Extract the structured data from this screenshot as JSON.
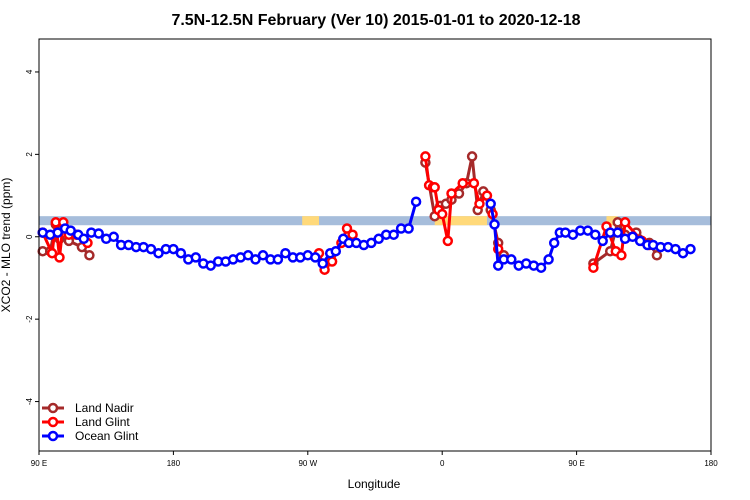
{
  "chart_data": {
    "type": "line",
    "title": "7.5N-12.5N February (Ver 10)   2015-01-01 to 2020-12-18",
    "xlabel": "Longitude",
    "ylabel": "XCO2 - MLO trend (ppm)",
    "xlim": [
      90,
      450
    ],
    "ylim": [
      -5.2,
      4.8
    ],
    "x_ticks": [
      {
        "value": 90,
        "label": "90 E"
      },
      {
        "value": 162,
        "label": "180"
      },
      {
        "value": 234,
        "label": "90 W"
      },
      {
        "value": 306,
        "label": "0"
      },
      {
        "value": 378,
        "label": "90 E"
      },
      {
        "value": 450,
        "label": "180"
      }
    ],
    "y_ticks": [
      {
        "value": 4,
        "label": "4"
      },
      {
        "value": 2,
        "label": "2"
      },
      {
        "value": 0,
        "label": "0"
      },
      {
        "value": -2,
        "label": "-2"
      },
      {
        "value": -4,
        "label": "-4"
      }
    ],
    "band": {
      "y_min": 0.28,
      "y_max": 0.5,
      "color": "#a6bddb"
    },
    "land_segments": [
      [
        231,
        240
      ],
      [
        302,
        330
      ],
      [
        394,
        400
      ]
    ],
    "land_color": "#ffd97a",
    "legend_position": "bottom-left",
    "series": [
      {
        "name": "Land Nadir",
        "color": "#a52a2a",
        "segments": [
          [
            [
              92,
              -0.35
            ],
            [
              96,
              -0.35
            ],
            [
              99,
              0.3
            ],
            [
              101,
              -0.05
            ],
            [
              106,
              -0.1
            ],
            [
              113,
              -0.25
            ],
            [
              117,
              -0.45
            ]
          ],
          [
            [
              297,
              1.8
            ],
            [
              302,
              0.5
            ],
            [
              305,
              0.75
            ],
            [
              308,
              0.8
            ],
            [
              311,
              0.9
            ],
            [
              315,
              1.05
            ],
            [
              319,
              1.3
            ],
            [
              322,
              1.95
            ],
            [
              325,
              0.65
            ],
            [
              328,
              1.1
            ],
            [
              332,
              0.65
            ],
            [
              336,
              -0.15
            ],
            [
              339,
              -0.45
            ]
          ],
          [
            [
              387,
              -0.65
            ],
            [
              396,
              -0.35
            ],
            [
              400,
              0.35
            ],
            [
              404,
              0.05
            ],
            [
              410,
              0.1
            ],
            [
              417,
              -0.15
            ],
            [
              421,
              -0.45
            ]
          ]
        ]
      },
      {
        "name": "Land Glint",
        "color": "#ff0000",
        "segments": [
          [
            [
              92,
              0.1
            ],
            [
              97,
              -0.4
            ],
            [
              99,
              0.35
            ],
            [
              101,
              -0.5
            ],
            [
              103,
              0.35
            ],
            [
              106,
              0.05
            ],
            [
              110,
              0.05
            ],
            [
              116,
              -0.15
            ]
          ],
          [
            [
              240,
              -0.4
            ],
            [
              243,
              -0.8
            ],
            [
              247,
              -0.6
            ],
            [
              252,
              -0.15
            ],
            [
              255,
              0.2
            ],
            [
              258,
              0.05
            ]
          ],
          [
            [
              297,
              1.95
            ],
            [
              299,
              1.25
            ],
            [
              301,
              1.2
            ],
            [
              302,
              1.2
            ],
            [
              304,
              0.65
            ],
            [
              306,
              0.55
            ],
            [
              309,
              -0.1
            ],
            [
              311,
              1.05
            ],
            [
              317,
              1.3
            ],
            [
              323,
              1.3
            ],
            [
              326,
              0.8
            ],
            [
              330,
              1.0
            ],
            [
              333,
              0.55
            ],
            [
              336,
              -0.3
            ]
          ],
          [
            [
              387,
              -0.75
            ],
            [
              394,
              0.25
            ],
            [
              399,
              -0.35
            ],
            [
              402,
              -0.45
            ],
            [
              404,
              0.35
            ],
            [
              413,
              -0.1
            ],
            [
              417,
              -0.2
            ]
          ]
        ]
      },
      {
        "name": "Ocean Glint",
        "color": "#0000ff",
        "segments": [
          [
            [
              92,
              0.1
            ],
            [
              96,
              0.05
            ],
            [
              100,
              0.1
            ],
            [
              104,
              0.2
            ],
            [
              107,
              0.15
            ],
            [
              111,
              0.05
            ],
            [
              114,
              -0.05
            ],
            [
              118,
              0.1
            ],
            [
              122,
              0.08
            ],
            [
              126,
              -0.05
            ],
            [
              130,
              0.0
            ],
            [
              134,
              -0.2
            ],
            [
              138,
              -0.2
            ],
            [
              142,
              -0.25
            ],
            [
              146,
              -0.25
            ],
            [
              150,
              -0.3
            ],
            [
              154,
              -0.4
            ],
            [
              158,
              -0.3
            ],
            [
              162,
              -0.3
            ],
            [
              166,
              -0.4
            ],
            [
              170,
              -0.55
            ],
            [
              174,
              -0.5
            ],
            [
              178,
              -0.65
            ],
            [
              182,
              -0.7
            ],
            [
              186,
              -0.6
            ],
            [
              190,
              -0.6
            ],
            [
              194,
              -0.55
            ],
            [
              198,
              -0.5
            ],
            [
              202,
              -0.45
            ],
            [
              206,
              -0.55
            ],
            [
              210,
              -0.45
            ],
            [
              214,
              -0.55
            ],
            [
              218,
              -0.55
            ],
            [
              222,
              -0.4
            ],
            [
              226,
              -0.5
            ],
            [
              230,
              -0.5
            ],
            [
              234,
              -0.45
            ],
            [
              238,
              -0.5
            ],
            [
              242,
              -0.65
            ],
            [
              246,
              -0.4
            ],
            [
              249,
              -0.35
            ],
            [
              253,
              -0.05
            ],
            [
              256,
              -0.15
            ],
            [
              260,
              -0.15
            ],
            [
              264,
              -0.2
            ],
            [
              268,
              -0.15
            ],
            [
              272,
              -0.05
            ],
            [
              276,
              0.05
            ],
            [
              280,
              0.05
            ],
            [
              284,
              0.2
            ],
            [
              288,
              0.2
            ],
            [
              292,
              0.85
            ]
          ],
          [
            [
              332,
              0.8
            ],
            [
              334,
              0.3
            ],
            [
              336,
              -0.7
            ],
            [
              339,
              -0.55
            ],
            [
              343,
              -0.55
            ],
            [
              347,
              -0.7
            ],
            [
              351,
              -0.65
            ],
            [
              355,
              -0.7
            ],
            [
              359,
              -0.75
            ],
            [
              363,
              -0.55
            ],
            [
              366,
              -0.15
            ],
            [
              369,
              0.1
            ],
            [
              372,
              0.1
            ],
            [
              376,
              0.05
            ],
            [
              380,
              0.15
            ],
            [
              384,
              0.15
            ],
            [
              388,
              0.05
            ],
            [
              392,
              -0.1
            ],
            [
              396,
              0.1
            ],
            [
              400,
              0.1
            ],
            [
              404,
              -0.05
            ],
            [
              408,
              0.0
            ],
            [
              412,
              -0.1
            ],
            [
              416,
              -0.2
            ],
            [
              419,
              -0.2
            ],
            [
              423,
              -0.25
            ],
            [
              427,
              -0.25
            ],
            [
              431,
              -0.3
            ],
            [
              435,
              -0.4
            ],
            [
              439,
              -0.3
            ]
          ]
        ]
      }
    ]
  }
}
